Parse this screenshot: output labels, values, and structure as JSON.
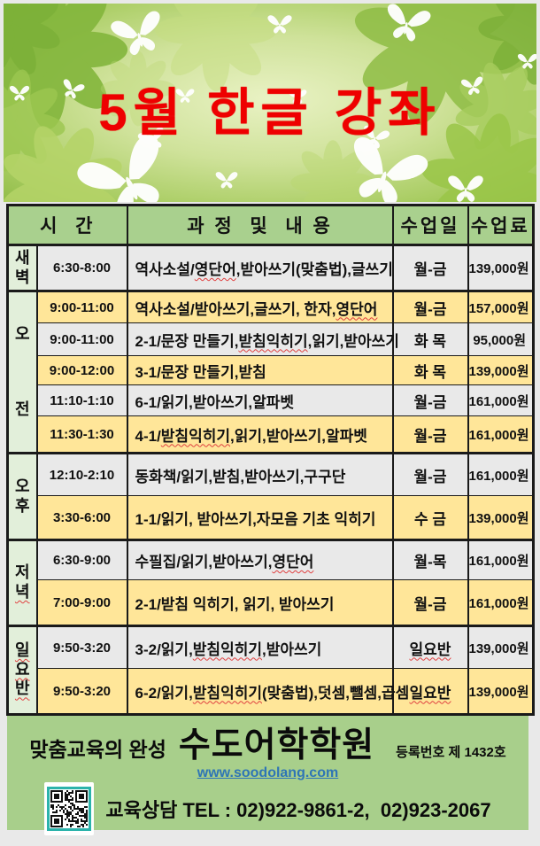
{
  "banner": {
    "title": "5월 한글 강좌"
  },
  "table": {
    "headers": {
      "time": "시  간",
      "content": "과 정  및  내 용",
      "days": "수업일",
      "fee": "수업료"
    },
    "groups": [
      {
        "chars": [
          "새",
          "벽"
        ],
        "span": 1,
        "spread": false
      },
      {
        "chars": [
          "오",
          "전"
        ],
        "span": 5,
        "spread": true
      },
      {
        "chars": [
          "오",
          "후"
        ],
        "span": 2,
        "spread": false
      },
      {
        "chars": [
          "저",
          "~~녁~~"
        ],
        "span": 2,
        "spread": false
      },
      {
        "chars": [
          "~~일~~",
          "~~요~~",
          "~~반~~"
        ],
        "span": 2,
        "spread": false
      }
    ],
    "rows": [
      {
        "time": "6:30-8:00",
        "content": "역사소설/~~영단어~~,받아쓰기(맞춤법),글쓰기",
        "days": "월-금",
        "fee": "139,000원"
      },
      {
        "time": "9:00-11:00",
        "content": "역사소설/받아쓰기,글쓰기, 한자,~~영단어~~",
        "days": "월-금",
        "fee": "157,000원"
      },
      {
        "time": "9:00-11:00",
        "content": "2-1/문장 만들기,~~받침익히기~~,읽기,받아쓰기",
        "days": "화 목",
        "fee": "95,000원"
      },
      {
        "time": "9:00-12:00",
        "content": "3-1/문장 만들기,받침",
        "days": "화 목",
        "fee": "139,000원"
      },
      {
        "time": "11:10-1:10",
        "content": "6-1/읽기,받아쓰기,알파벳",
        "days": "월-금",
        "fee": "161,000원"
      },
      {
        "time": "11:30-1:30",
        "content": "4-1/~~받침익히기~~,읽기,받아쓰기,알파벳",
        "days": "월-금",
        "fee": "161,000원"
      },
      {
        "time": "12:10-2:10",
        "content": "동화책/읽기,받침,받아쓰기,구구단",
        "days": "월-금",
        "fee": "161,000원"
      },
      {
        "time": "3:30-6:00",
        "content": "1-1/읽기, 받아쓰기,자모음 기초 익히기",
        "days": "수 금",
        "fee": "139,000원"
      },
      {
        "time": "6:30-9:00",
        "content": "수필집/읽기,받아쓰기,~~영단어~~",
        "days": "월-목",
        "fee": "161,000원"
      },
      {
        "time": "7:00-9:00",
        "content": "2-1/받침 익히기, 읽기, 받아쓰기",
        "days": "월-금",
        "fee": "161,000원"
      },
      {
        "time": "9:50-3:20",
        "content": "3-2/읽기,~~받침익히기~~,받아쓰기",
        "days": "~~일요반~~",
        "fee": "139,000원"
      },
      {
        "time": "9:50-3:20",
        "content": "6-2/읽기,~~받침익히기~~(맞춤법),덧셈,뺄셈,곱셈",
        "days": "~~일요반~~",
        "fee": "139,000원"
      }
    ]
  },
  "footer": {
    "slogan": "맞춤교육의 완성",
    "academy_name": "수도어학학원",
    "registration": "등록번호 제 1432호",
    "website": "www.soodolang.com",
    "contact": "교육상담 TEL : 02)922-9861-2,  02)923-2067"
  },
  "icons": [
    "butterfly-icon",
    "flower-icon",
    "qr-code"
  ],
  "colors": {
    "title_red": "#ee0000",
    "header_green": "#a9d08e",
    "group_green": "#e2efda",
    "row_yellow": "#ffe699",
    "footer_green": "#a8cf8b",
    "link_blue": "#2e75b6",
    "qr_teal": "#2bb3ab",
    "squiggle": "#e04040",
    "border_dark": "#1a1a1a"
  }
}
